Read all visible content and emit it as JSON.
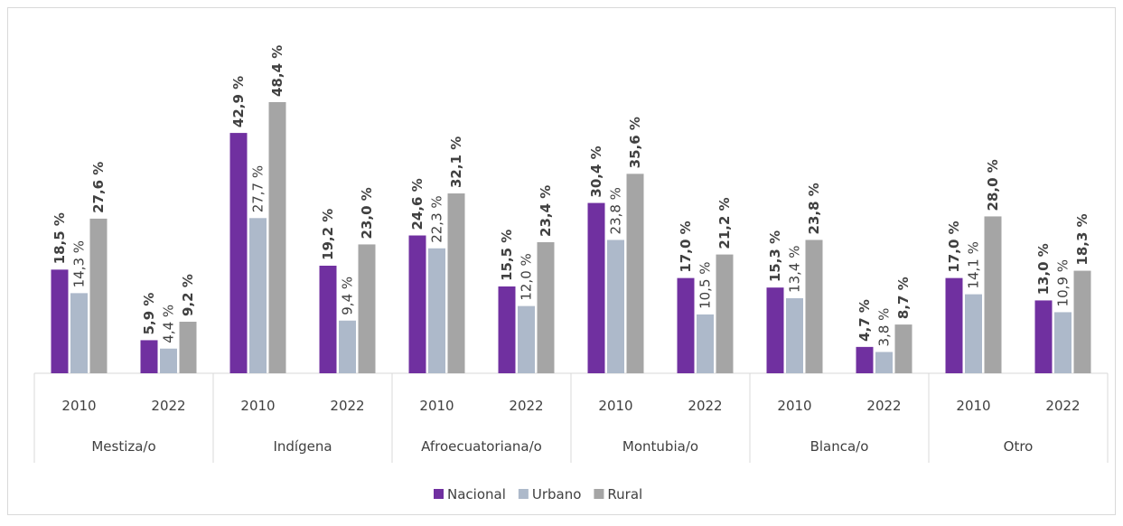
{
  "chart_data": {
    "type": "bar",
    "categories": [
      "2010",
      "2022",
      "2010",
      "2022",
      "2010",
      "2022",
      "2010",
      "2022",
      "2010",
      "2022",
      "2010",
      "2022"
    ],
    "groups": [
      "Mestiza/o",
      "Indígena",
      "Afroecuatoriana/o",
      "Montubia/o",
      "Blanca/o",
      "Otro"
    ],
    "legend": "bottom",
    "series": [
      {
        "name": "Nacional",
        "color": "#7030a0",
        "bold": true,
        "values": [
          18.5,
          5.9,
          42.9,
          19.2,
          24.6,
          15.5,
          30.4,
          17.0,
          15.3,
          4.7,
          17.0,
          13.0
        ],
        "value_labels": [
          "18,5 %",
          "5,9 %",
          "42,9 %",
          "19,2 %",
          "24,6 %",
          "15,5 %",
          "30,4 %",
          "17,0 %",
          "15,3 %",
          "4,7 %",
          "17,0 %",
          "13,0 %"
        ]
      },
      {
        "name": "Urbano",
        "color": "#adb9ca",
        "bold": false,
        "values": [
          14.3,
          4.4,
          27.7,
          9.4,
          22.3,
          12.0,
          23.8,
          10.5,
          13.4,
          3.8,
          14.1,
          10.9
        ],
        "value_labels": [
          "14,3 %",
          "4,4 %",
          "27,7 %",
          "9,4 %",
          "22,3 %",
          "12,0 %",
          "23,8 %",
          "10,5 %",
          "13,4 %",
          "3,8 %",
          "14,1 %",
          "10,9 %"
        ]
      },
      {
        "name": "Rural",
        "color": "#a5a5a5",
        "bold": true,
        "values": [
          27.6,
          9.2,
          48.4,
          23.0,
          32.1,
          23.4,
          35.6,
          21.2,
          23.8,
          8.7,
          28.0,
          18.3
        ],
        "value_labels": [
          "27,6 %",
          "9,2 %",
          "48,4 %",
          "23,0 %",
          "32,1 %",
          "23,4 %",
          "35,6 %",
          "21,2 %",
          "23,8 %",
          "8,7 %",
          "28,0 %",
          "18,3 %"
        ]
      }
    ]
  }
}
